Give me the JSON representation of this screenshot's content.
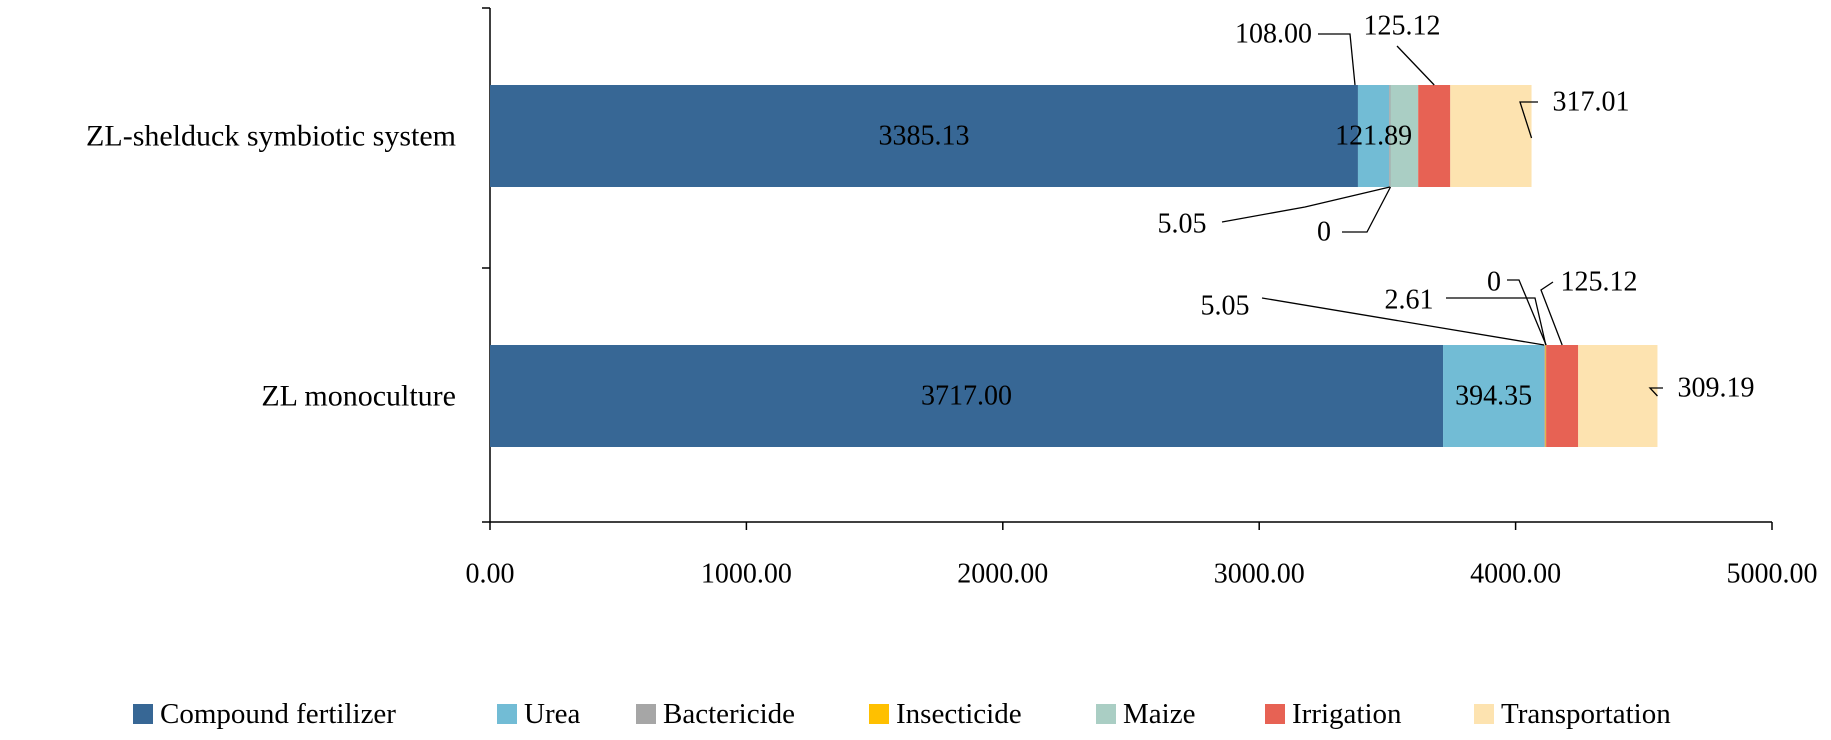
{
  "chart_data": {
    "type": "bar",
    "orientation": "horizontal",
    "stacked": true,
    "categories": [
      "ZL-shelduck symbiotic system",
      "ZL monoculture"
    ],
    "series": [
      {
        "name": "Compound fertilizer",
        "color": "#376795",
        "values": [
          3385.13,
          3717.0
        ]
      },
      {
        "name": "Urea",
        "color": "#72bcd5",
        "values": [
          121.89,
          394.35
        ]
      },
      {
        "name": "Bactericide",
        "color": "#a6a6a6",
        "values": [
          5.05,
          5.05
        ]
      },
      {
        "name": "Insecticide",
        "color": "#ffc000",
        "values": [
          0,
          2.61
        ]
      },
      {
        "name": "Maize",
        "color": "#aacec4",
        "values": [
          108.0,
          0
        ]
      },
      {
        "name": "Irrigation",
        "color": "#e76254",
        "values": [
          125.12,
          125.12
        ]
      },
      {
        "name": "Transportation",
        "color": "#fde3b0",
        "values": [
          317.01,
          309.19
        ]
      }
    ],
    "value_labels": [
      [
        "3385.13",
        "121.89",
        "5.05",
        "0",
        "108.00",
        "125.12",
        "317.01"
      ],
      [
        "3717.00",
        "394.35",
        "5.05",
        "2.61",
        "0",
        "125.12",
        "309.19"
      ]
    ],
    "xlim": [
      0,
      5000
    ],
    "x_ticks": [
      "0.00",
      "1000.00",
      "2000.00",
      "3000.00",
      "4000.00",
      "5000.00"
    ],
    "title": "",
    "xlabel": "",
    "ylabel": "",
    "legend_position": "bottom",
    "grid": false
  }
}
